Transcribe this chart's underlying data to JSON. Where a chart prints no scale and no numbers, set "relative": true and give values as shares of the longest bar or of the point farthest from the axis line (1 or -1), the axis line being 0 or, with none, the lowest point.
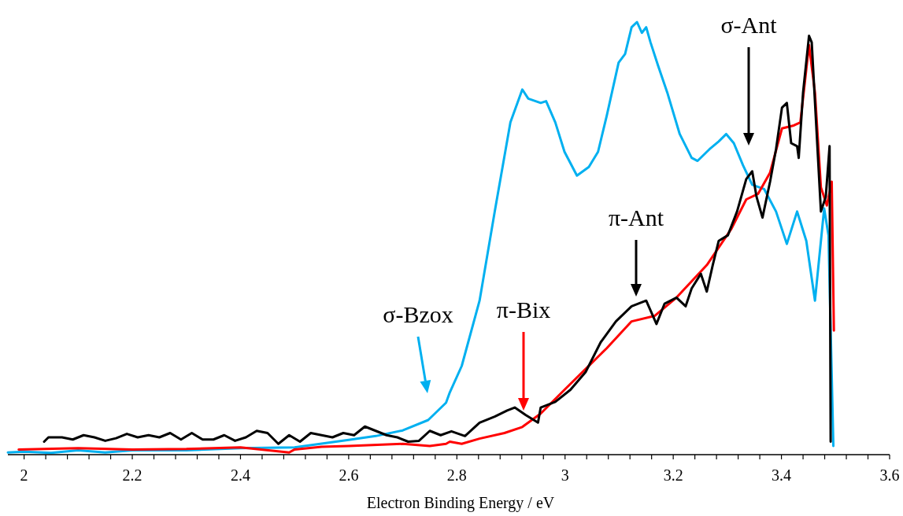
{
  "chart_data": {
    "type": "line",
    "relative": true,
    "xlabel": "Electron Binding Energy / eV",
    "xlim": [
      1.97,
      3.6
    ],
    "xticks": [
      2,
      {
        "value": 2.04,
        "label": null
      },
      {
        "value": 2.08,
        "label": null
      },
      {
        "value": 2.12,
        "label": null
      },
      {
        "value": 2.16,
        "label": null
      },
      2.2,
      {
        "value": 2.24,
        "label": null
      },
      {
        "value": 2.28,
        "label": null
      },
      {
        "value": 2.32,
        "label": null
      },
      {
        "value": 2.36,
        "label": null
      },
      2.4,
      {
        "value": 2.44,
        "label": null
      },
      {
        "value": 2.48,
        "label": null
      },
      {
        "value": 2.52,
        "label": null
      },
      {
        "value": 2.56,
        "label": null
      },
      2.6,
      {
        "value": 2.64,
        "label": null
      },
      {
        "value": 2.68,
        "label": null
      },
      {
        "value": 2.72,
        "label": null
      },
      {
        "value": 2.76,
        "label": null
      },
      2.8,
      {
        "value": 2.84,
        "label": null
      },
      {
        "value": 2.88,
        "label": null
      },
      {
        "value": 2.92,
        "label": null
      },
      {
        "value": 2.96,
        "label": null
      },
      3,
      {
        "value": 3.04,
        "label": null
      },
      {
        "value": 3.08,
        "label": null
      },
      {
        "value": 3.12,
        "label": null
      },
      {
        "value": 3.16,
        "label": null
      },
      3.2,
      {
        "value": 3.24,
        "label": null
      },
      {
        "value": 3.28,
        "label": null
      },
      {
        "value": 3.32,
        "label": null
      },
      {
        "value": 3.36,
        "label": null
      },
      3.4,
      {
        "value": 3.44,
        "label": null
      },
      {
        "value": 3.48,
        "label": null
      },
      {
        "value": 3.52,
        "label": null
      },
      {
        "value": 3.56,
        "label": null
      },
      3.6
    ],
    "grid": false,
    "marker": "none",
    "line_style": "solid",
    "series": [
      {
        "color": "#00b0f0",
        "x": [
          1.97,
          2.0,
          2.05,
          2.1,
          2.15,
          2.2,
          2.3,
          2.4,
          2.5,
          2.6,
          2.65,
          2.7,
          2.747,
          2.78,
          2.787,
          2.809,
          2.842,
          2.87,
          2.899,
          2.921,
          2.932,
          2.955,
          2.965,
          2.982,
          2.999,
          3.022,
          3.044,
          3.061,
          3.077,
          3.099,
          3.111,
          3.123,
          3.133,
          3.142,
          3.15,
          3.158,
          3.172,
          3.189,
          3.212,
          3.234,
          3.245,
          3.267,
          3.284,
          3.298,
          3.312,
          3.329,
          3.346,
          3.368,
          3.39,
          3.41,
          3.429,
          3.446,
          3.462,
          3.479,
          3.487,
          3.496
        ],
        "values": [
          0.005,
          0.007,
          0.004,
          0.01,
          0.005,
          0.01,
          0.01,
          0.015,
          0.017,
          0.034,
          0.043,
          0.056,
          0.08,
          0.12,
          0.144,
          0.205,
          0.356,
          0.562,
          0.768,
          0.844,
          0.823,
          0.813,
          0.817,
          0.768,
          0.7,
          0.645,
          0.665,
          0.7,
          0.783,
          0.906,
          0.926,
          0.988,
          1.0,
          0.975,
          0.988,
          0.953,
          0.899,
          0.837,
          0.741,
          0.686,
          0.679,
          0.706,
          0.724,
          0.741,
          0.72,
          0.669,
          0.624,
          0.614,
          0.562,
          0.487,
          0.562,
          0.494,
          0.356,
          0.569,
          0.507,
          0.02
        ]
      },
      {
        "color": "#ff0000",
        "x": [
          1.99,
          2.1,
          2.2,
          2.3,
          2.4,
          2.49,
          2.5,
          2.55,
          2.6,
          2.7,
          2.75,
          2.78,
          2.787,
          2.809,
          2.842,
          2.888,
          2.921,
          2.955,
          2.999,
          3.038,
          3.077,
          3.123,
          3.166,
          3.206,
          3.262,
          3.307,
          3.335,
          3.357,
          3.379,
          3.401,
          3.423,
          3.435,
          3.451,
          3.462,
          3.473,
          3.484,
          3.493,
          3.497
        ],
        "values": [
          0.012,
          0.015,
          0.012,
          0.013,
          0.017,
          0.005,
          0.012,
          0.018,
          0.02,
          0.025,
          0.02,
          0.025,
          0.03,
          0.025,
          0.037,
          0.05,
          0.064,
          0.095,
          0.15,
          0.198,
          0.246,
          0.308,
          0.321,
          0.363,
          0.438,
          0.521,
          0.59,
          0.603,
          0.652,
          0.754,
          0.761,
          0.768,
          0.947,
          0.837,
          0.618,
          0.576,
          0.631,
          0.287
        ]
      },
      {
        "color": "#000000",
        "x": [
          2.037,
          2.045,
          2.07,
          2.09,
          2.11,
          2.13,
          2.15,
          2.17,
          2.19,
          2.21,
          2.23,
          2.25,
          2.27,
          2.29,
          2.31,
          2.33,
          2.35,
          2.37,
          2.39,
          2.41,
          2.43,
          2.45,
          2.47,
          2.49,
          2.51,
          2.53,
          2.55,
          2.57,
          2.59,
          2.61,
          2.63,
          2.65,
          2.67,
          2.69,
          2.71,
          2.73,
          2.75,
          2.77,
          2.79,
          2.815,
          2.842,
          2.87,
          2.893,
          2.907,
          2.927,
          2.95,
          2.955,
          2.982,
          3.01,
          3.038,
          3.066,
          3.094,
          3.123,
          3.15,
          3.169,
          3.184,
          3.206,
          3.223,
          3.234,
          3.251,
          3.262,
          3.273,
          3.284,
          3.301,
          3.318,
          3.335,
          3.346,
          3.354,
          3.365,
          3.379,
          3.39,
          3.401,
          3.41,
          3.418,
          3.429,
          3.432,
          3.44,
          3.451,
          3.456,
          3.473,
          3.482,
          3.489,
          3.491
        ],
        "values": [
          0.03,
          0.04,
          0.04,
          0.035,
          0.045,
          0.04,
          0.032,
          0.038,
          0.048,
          0.04,
          0.045,
          0.04,
          0.05,
          0.035,
          0.05,
          0.035,
          0.035,
          0.045,
          0.032,
          0.04,
          0.055,
          0.05,
          0.025,
          0.045,
          0.03,
          0.05,
          0.045,
          0.04,
          0.05,
          0.045,
          0.065,
          0.055,
          0.045,
          0.04,
          0.03,
          0.032,
          0.055,
          0.045,
          0.054,
          0.043,
          0.074,
          0.088,
          0.102,
          0.109,
          0.092,
          0.074,
          0.109,
          0.122,
          0.15,
          0.191,
          0.26,
          0.308,
          0.343,
          0.356,
          0.302,
          0.349,
          0.363,
          0.343,
          0.384,
          0.418,
          0.377,
          0.438,
          0.494,
          0.507,
          0.562,
          0.637,
          0.655,
          0.596,
          0.548,
          0.631,
          0.706,
          0.802,
          0.813,
          0.72,
          0.713,
          0.686,
          0.837,
          0.968,
          0.953,
          0.562,
          0.596,
          0.713,
          0.03
        ]
      }
    ],
    "annotations": [
      "σ-Bzox",
      "π-Bix",
      "π-Ant",
      "σ-Ant"
    ]
  }
}
